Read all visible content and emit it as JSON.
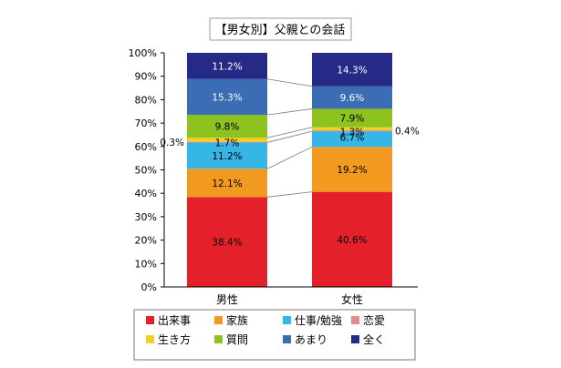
{
  "chart_data": {
    "type": "bar",
    "stacked": true,
    "title": "【男女別】父親との会話",
    "categories": [
      "男性",
      "女性"
    ],
    "ylim": [
      0,
      100
    ],
    "yticks": [
      "0%",
      "10%",
      "20%",
      "30%",
      "40%",
      "50%",
      "60%",
      "70%",
      "80%",
      "90%",
      "100%"
    ],
    "grid": false,
    "legend_position": "bottom",
    "series": [
      {
        "name": "出来事",
        "color": "#e4202b",
        "values": [
          38.4,
          40.6
        ],
        "labels": [
          "38.4%",
          "40.6%"
        ]
      },
      {
        "name": "家族",
        "color": "#f29a1f",
        "values": [
          12.1,
          19.2
        ],
        "labels": [
          "12.1%",
          "19.2%"
        ]
      },
      {
        "name": "仕事/勉強",
        "color": "#35b6e6",
        "values": [
          11.2,
          6.7
        ],
        "labels": [
          "11.2%",
          "6.7%"
        ]
      },
      {
        "name": "恋愛",
        "color": "#e8898f",
        "values": [
          0.3,
          0.4
        ],
        "labels": [
          "0.3%",
          "0.4%"
        ]
      },
      {
        "name": "生き方",
        "color": "#f5cf23",
        "values": [
          1.7,
          1.3
        ],
        "labels": [
          "1.7%",
          "1.3%"
        ]
      },
      {
        "name": "質問",
        "color": "#8dc21f",
        "values": [
          9.8,
          7.9
        ],
        "labels": [
          "9.8%",
          "7.9%"
        ]
      },
      {
        "name": "あまり",
        "color": "#3a6db4",
        "values": [
          15.3,
          9.6
        ],
        "labels": [
          "15.3%",
          "9.6%"
        ]
      },
      {
        "name": "全く",
        "color": "#252a86",
        "values": [
          11.2,
          14.3
        ],
        "labels": [
          "11.2%",
          "14.3%"
        ]
      }
    ]
  }
}
